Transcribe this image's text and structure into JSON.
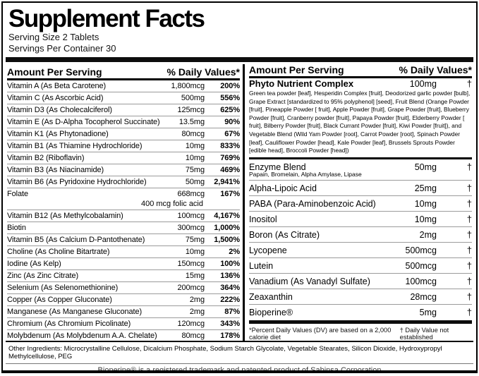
{
  "colors": {
    "text": "#000000",
    "background": "#ffffff",
    "hairline": "#9b9b9b",
    "bar": "#0d0d0d"
  },
  "header": {
    "title": "Supplement Facts",
    "serving_size": "Serving Size 2 Tablets",
    "servings_per_container": "Servings Per Container 30"
  },
  "left_column": {
    "header": {
      "amount_label": "Amount Per Serving",
      "dv_label": "% Daily Values*"
    },
    "rows": [
      {
        "name": "Vitamin A (As Beta Carotene)",
        "amount": "1,800mcg",
        "dv": "200%"
      },
      {
        "name": "Vitamin C (As Ascorbic Acid)",
        "amount": "500mg",
        "dv": "556%"
      },
      {
        "name": "Vitamin D3 (As Cholecalciferol)",
        "amount": "125mcg",
        "dv": "625%"
      },
      {
        "name": "Vitamin E (As D-Alpha Tocopherol Succinate)",
        "amount": "13.5mg",
        "dv": "90%"
      },
      {
        "name": "Vitamin K1 (As Phytonadione)",
        "amount": "80mcg",
        "dv": "67%"
      },
      {
        "name": "Vitamin B1 (As Thiamine Hydrochloride)",
        "amount": "10mg",
        "dv": "833%"
      },
      {
        "name": "Vitamin B2 (Riboflavin)",
        "amount": "10mg",
        "dv": "769%"
      },
      {
        "name": "Vitamin B3 (As Niacinamide)",
        "amount": "75mg",
        "dv": "469%"
      },
      {
        "name": "Vitamin B6 (As Pyridoxine Hydrochloride)",
        "amount": "50mg",
        "dv": "2,941%"
      },
      {
        "name": "Folate",
        "amount": "668mcg",
        "dv": "167%",
        "sub": "400 mcg folic acid"
      },
      {
        "name": "Vitamin B12 (As Methylcobalamin)",
        "amount": "100mcg",
        "dv": "4,167%"
      },
      {
        "name": "Biotin",
        "amount": "300mcg",
        "dv": "1,000%"
      },
      {
        "name": "Vitamin B5 (As Calcium D-Pantothenate)",
        "amount": "75mg",
        "dv": "1,500%"
      },
      {
        "name": "Choline (As Choline Bitartrate)",
        "amount": "10mg",
        "dv": "2%"
      },
      {
        "name": "Iodine (As Kelp)",
        "amount": "150mcg",
        "dv": "100%"
      },
      {
        "name": "Zinc (As Zinc Citrate)",
        "amount": "15mg",
        "dv": "136%"
      },
      {
        "name": "Selenium (As Selenomethionine)",
        "amount": "200mcg",
        "dv": "364%"
      },
      {
        "name": "Copper (As Copper Gluconate)",
        "amount": "2mg",
        "dv": "222%"
      },
      {
        "name": "Manganese (As Manganese Gluconate)",
        "amount": "2mg",
        "dv": "87%"
      },
      {
        "name": "Chromium (As Chromium Picolinate)",
        "amount": "120mcg",
        "dv": "343%"
      },
      {
        "name": "Molybdenum (As Molybdenum A.A. Chelate)",
        "amount": "80mcg",
        "dv": "178%"
      }
    ]
  },
  "right_column": {
    "header": {
      "amount_label": "Amount Per Serving",
      "dv_label": "% Daily Values*"
    },
    "phyto": {
      "name": "Phyto Nutrient Complex",
      "amount": "100mg",
      "dv": "†",
      "description": "Green tea powder [leaf], Hesperidin Complex [fruit], Deodorized garlic powder [bulb], Grape Extract [standardized to 95% polyphenol] [seed], Fruit Blend (Orange Powder [fruit], Pineapple Powder [ fruit], Apple Powder [fruit], Grape Powder [fruit], Blueberry Powder [fruit], Cranberry powder [fruit], Papaya Powder [fruit], Elderberry Powder [ fruit], Bilberry Powder [fruit], Black Currant Powder [fruit], Kiwi Powder [fruit]), and Vegetable Blend (Wild Yam Powder [root], Carrot Powder [root], Spinach Powder [leaf], Cauliflower Powder [head], Kale Powder [leaf], Brussels Sprouts Powder [edible head], Broccoli Powder [head])"
    },
    "rows": [
      {
        "name": "Enzyme Blend",
        "amount": "50mg",
        "dv": "†",
        "sub": "Papain, Bromelain, Alpha Amylase, Lipase"
      },
      {
        "name": "Alpha-Lipoic Acid",
        "amount": "25mg",
        "dv": "†"
      },
      {
        "name": "PABA (Para-Aminobenzoic Acid)",
        "amount": "10mg",
        "dv": "†"
      },
      {
        "name": "Inositol",
        "amount": "10mg",
        "dv": "†"
      },
      {
        "name": "Boron (As Citrate)",
        "amount": "2mg",
        "dv": "†"
      },
      {
        "name": "Lycopene",
        "amount": "500mcg",
        "dv": "†"
      },
      {
        "name": "Lutein",
        "amount": "500mcg",
        "dv": "†"
      },
      {
        "name": "Vanadium (As Vanadyl Sulfate)",
        "amount": "100mcg",
        "dv": "†"
      },
      {
        "name": "Zeaxanthin",
        "amount": "28mcg",
        "dv": "†"
      },
      {
        "name": "Bioperine®",
        "amount": "5mg",
        "dv": "†"
      }
    ],
    "footnotes": {
      "percent_note": "*Percent Daily Values (DV) are based on a 2,000 calorie diet",
      "dagger_note": "† Daily Value not established"
    }
  },
  "footer": {
    "other_ingredients": "Other Ingredients: Microcrystalline Cellulose, Dicalcium Phosphate, Sodium Starch Glycolate, Vegetable Stearates, Silicon Dioxide, Hydroxypropyl Methylcellulose, PEG",
    "trademark": "Bioperine® is a registered trademark and patented product of Sabinsa Corporation"
  }
}
